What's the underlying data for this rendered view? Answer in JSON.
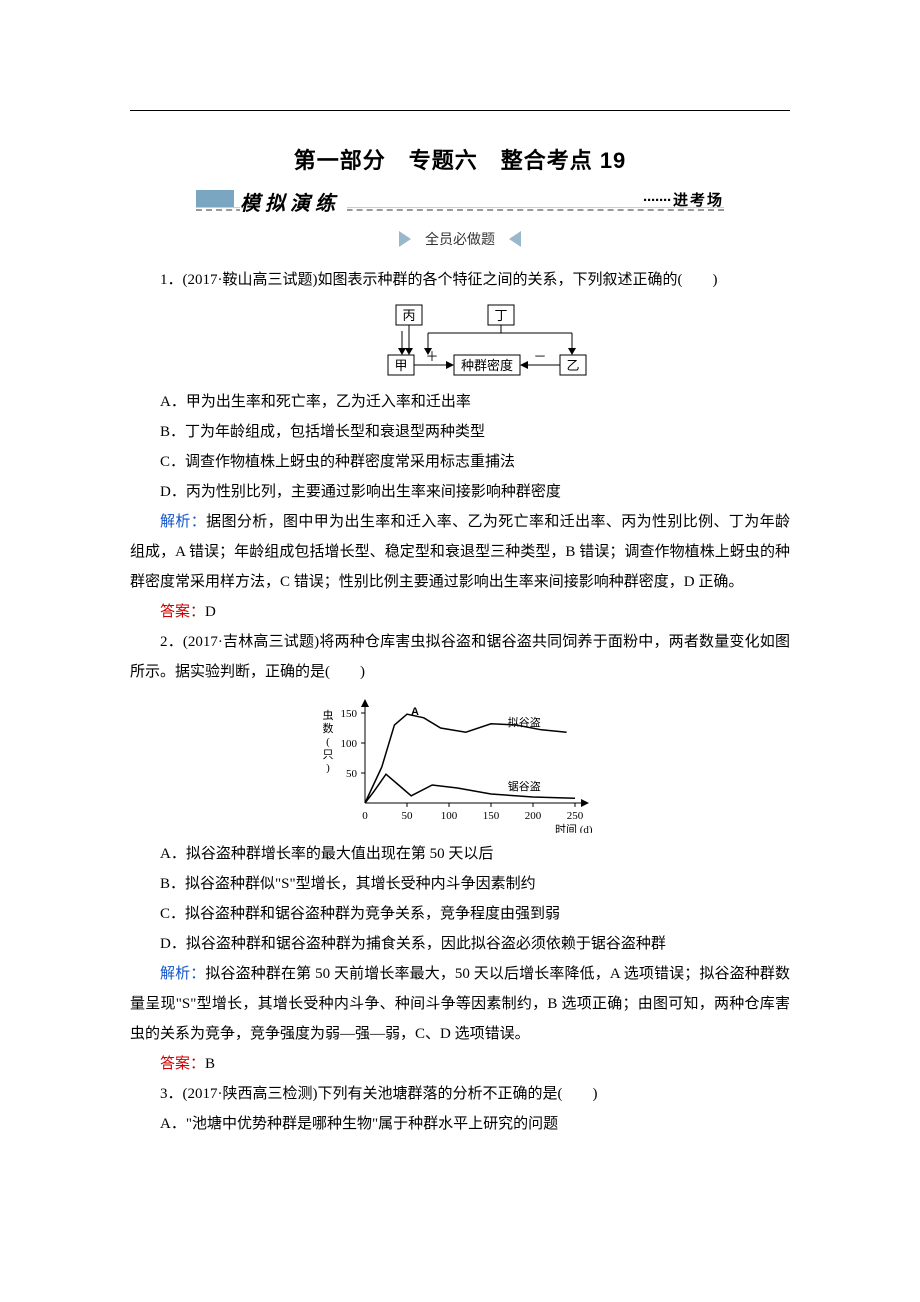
{
  "header": {
    "title": "第一部分　专题六　整合考点 19",
    "banner_label": "模 拟 演 练",
    "banner_right": "进考场",
    "section_tag": "全员必做题"
  },
  "q1": {
    "stem": "1．(2017·鞍山高三试题)如图表示种群的各个特征之间的关系，下列叙述正确的(　　)",
    "diagram": {
      "box_bing": "丙",
      "box_ding": "丁",
      "box_jia": "甲",
      "box_center": "种群密度",
      "box_yi": "乙",
      "plus": "＋",
      "minus": "－"
    },
    "opt_a": "A．甲为出生率和死亡率，乙为迁入率和迁出率",
    "opt_b": "B．丁为年龄组成，包括增长型和衰退型两种类型",
    "opt_c": "C．调查作物植株上蚜虫的种群密度常采用标志重捕法",
    "opt_d": "D．丙为性别比列，主要通过影响出生率来间接影响种群密度",
    "analysis_label": "解析：",
    "analysis_text": "据图分析，图中甲为出生率和迁入率、乙为死亡率和迁出率、丙为性别比例、丁为年龄组成，A 错误；年龄组成包括增长型、稳定型和衰退型三种类型，B 错误；调查作物植株上蚜虫的种群密度常采用样方法，C 错误；性别比例主要通过影响出生率来间接影响种群密度，D 正确。",
    "answer_label": "答案：",
    "answer_text": "D"
  },
  "q2": {
    "stem": "2．(2017·吉林高三试题)将两种仓库害虫拟谷盗和锯谷盗共同饲养于面粉中，两者数量变化如图所示。据实验判断，正确的是(　　)",
    "chart": {
      "y_label": "虫数(只)",
      "y_ticks": [
        "50",
        "100",
        "150"
      ],
      "x_label": "时间 (d)",
      "x_ticks": [
        "0",
        "50",
        "100",
        "150",
        "200",
        "250"
      ],
      "point_a": "A",
      "series1": "拟谷盗",
      "series2": "锯谷盗",
      "curve1_color": "#000000",
      "curve2_color": "#000000",
      "curve1_points": [
        [
          0,
          0
        ],
        [
          20,
          60
        ],
        [
          35,
          130
        ],
        [
          50,
          148
        ],
        [
          70,
          142
        ],
        [
          90,
          125
        ],
        [
          120,
          118
        ],
        [
          150,
          132
        ],
        [
          180,
          130
        ],
        [
          210,
          122
        ],
        [
          240,
          118
        ]
      ],
      "curve2_points": [
        [
          0,
          0
        ],
        [
          10,
          18
        ],
        [
          25,
          48
        ],
        [
          40,
          30
        ],
        [
          55,
          12
        ],
        [
          80,
          30
        ],
        [
          110,
          25
        ],
        [
          150,
          15
        ],
        [
          200,
          10
        ],
        [
          250,
          8
        ]
      ]
    },
    "opt_a": "A．拟谷盗种群增长率的最大值出现在第 50 天以后",
    "opt_b": "B．拟谷盗种群似\"S\"型增长，其增长受种内斗争因素制约",
    "opt_c": "C．拟谷盗种群和锯谷盗种群为竞争关系，竞争程度由强到弱",
    "opt_d": "D．拟谷盗种群和锯谷盗种群为捕食关系，因此拟谷盗必须依赖于锯谷盗种群",
    "analysis_label": "解析：",
    "analysis_text": "拟谷盗种群在第 50 天前增长率最大，50 天以后增长率降低，A 选项错误；拟谷盗种群数量呈现\"S\"型增长，其增长受种内斗争、种间斗争等因素制约，B 选项正确；由图可知，两种仓库害虫的关系为竞争，竞争强度为弱—强—弱，C、D 选项错误。",
    "answer_label": "答案：",
    "answer_text": "B"
  },
  "q3": {
    "stem": "3．(2017·陕西高三检测)下列有关池塘群落的分析不正确的是(　　)",
    "opt_a": "A．\"池塘中优势种群是哪种生物\"属于种群水平上研究的问题"
  }
}
